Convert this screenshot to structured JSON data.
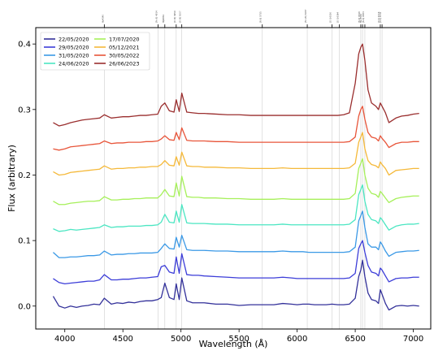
{
  "chart_data": {
    "type": "line",
    "xlabel": "Wavelength (Å)",
    "ylabel": "Flux (arbitrary)",
    "xlim": [
      3750,
      7150
    ],
    "ylim": [
      -0.035,
      0.425
    ],
    "xticks": [
      4000,
      4500,
      5000,
      5500,
      6000,
      6500,
      7000
    ],
    "yticks": [
      0.0,
      0.1,
      0.2,
      0.3,
      0.4
    ],
    "ytick_labels": [
      "0.0",
      "0.1",
      "0.2",
      "0.3",
      "0.4"
    ],
    "grid": false,
    "legend_position": "top-left",
    "legend_columns": 2,
    "x": [
      3900,
      3950,
      4000,
      4050,
      4100,
      4150,
      4200,
      4250,
      4300,
      4340,
      4400,
      4450,
      4500,
      4550,
      4600,
      4650,
      4700,
      4750,
      4800,
      4830,
      4861,
      4900,
      4940,
      4959,
      4985,
      5007,
      5050,
      5100,
      5150,
      5200,
      5300,
      5400,
      5500,
      5600,
      5700,
      5800,
      5876,
      5950,
      6000,
      6050,
      6100,
      6150,
      6200,
      6250,
      6300,
      6350,
      6400,
      6450,
      6500,
      6530,
      6548,
      6563,
      6583,
      6610,
      6640,
      6678,
      6700,
      6716,
      6731,
      6760,
      6790,
      6850,
      6900,
      6950,
      7000,
      7050
    ],
    "series": [
      {
        "name": "22/05/2020",
        "color": "#33319a",
        "values": [
          0.015,
          0.0,
          -0.003,
          0.0,
          -0.002,
          0.0,
          0.001,
          0.003,
          0.002,
          0.012,
          0.003,
          0.005,
          0.004,
          0.006,
          0.005,
          0.007,
          0.008,
          0.008,
          0.01,
          0.013,
          0.035,
          0.013,
          0.01,
          0.034,
          0.01,
          0.043,
          0.008,
          0.005,
          0.005,
          0.005,
          0.003,
          0.003,
          0.001,
          0.002,
          0.002,
          0.002,
          0.004,
          0.003,
          0.002,
          0.003,
          0.003,
          0.002,
          0.002,
          0.002,
          0.003,
          0.002,
          0.002,
          0.003,
          0.012,
          0.045,
          0.055,
          0.07,
          0.045,
          0.02,
          0.01,
          0.008,
          0.004,
          0.025,
          0.018,
          0.004,
          -0.006,
          0.0,
          0.001,
          0.0,
          0.001,
          0.0
        ]
      },
      {
        "name": "29/05/2020",
        "color": "#3c3dd8",
        "values": [
          0.042,
          0.036,
          0.034,
          0.035,
          0.036,
          0.037,
          0.038,
          0.038,
          0.04,
          0.048,
          0.04,
          0.04,
          0.041,
          0.041,
          0.042,
          0.043,
          0.043,
          0.044,
          0.045,
          0.06,
          0.062,
          0.052,
          0.05,
          0.075,
          0.05,
          0.08,
          0.048,
          0.047,
          0.047,
          0.046,
          0.045,
          0.044,
          0.043,
          0.043,
          0.043,
          0.043,
          0.044,
          0.043,
          0.042,
          0.042,
          0.042,
          0.042,
          0.042,
          0.042,
          0.042,
          0.042,
          0.042,
          0.043,
          0.05,
          0.088,
          0.095,
          0.1,
          0.082,
          0.062,
          0.052,
          0.05,
          0.046,
          0.058,
          0.055,
          0.046,
          0.037,
          0.042,
          0.043,
          0.043,
          0.044,
          0.044
        ]
      },
      {
        "name": "31/05/2020",
        "color": "#3b99e6",
        "values": [
          0.082,
          0.074,
          0.074,
          0.075,
          0.075,
          0.076,
          0.077,
          0.077,
          0.078,
          0.084,
          0.078,
          0.079,
          0.079,
          0.08,
          0.08,
          0.081,
          0.081,
          0.081,
          0.082,
          0.088,
          0.095,
          0.088,
          0.087,
          0.105,
          0.09,
          0.108,
          0.086,
          0.085,
          0.085,
          0.085,
          0.084,
          0.084,
          0.083,
          0.083,
          0.083,
          0.083,
          0.084,
          0.083,
          0.083,
          0.083,
          0.082,
          0.082,
          0.082,
          0.082,
          0.082,
          0.082,
          0.082,
          0.083,
          0.09,
          0.13,
          0.138,
          0.145,
          0.12,
          0.095,
          0.09,
          0.09,
          0.086,
          0.098,
          0.094,
          0.084,
          0.076,
          0.082,
          0.083,
          0.084,
          0.084,
          0.085
        ]
      },
      {
        "name": "24/06/2020",
        "color": "#4be6c2",
        "values": [
          0.118,
          0.114,
          0.115,
          0.117,
          0.116,
          0.117,
          0.118,
          0.119,
          0.12,
          0.124,
          0.12,
          0.121,
          0.121,
          0.122,
          0.122,
          0.122,
          0.123,
          0.123,
          0.124,
          0.128,
          0.14,
          0.128,
          0.127,
          0.145,
          0.128,
          0.155,
          0.127,
          0.126,
          0.126,
          0.126,
          0.125,
          0.125,
          0.124,
          0.124,
          0.124,
          0.124,
          0.125,
          0.124,
          0.124,
          0.124,
          0.124,
          0.124,
          0.124,
          0.124,
          0.124,
          0.124,
          0.124,
          0.125,
          0.132,
          0.17,
          0.178,
          0.185,
          0.16,
          0.14,
          0.132,
          0.13,
          0.126,
          0.135,
          0.132,
          0.124,
          0.116,
          0.122,
          0.124,
          0.125,
          0.125,
          0.126
        ]
      },
      {
        "name": "17/07/2020",
        "color": "#a6f05a",
        "values": [
          0.16,
          0.155,
          0.155,
          0.157,
          0.158,
          0.159,
          0.16,
          0.16,
          0.161,
          0.167,
          0.162,
          0.162,
          0.163,
          0.163,
          0.164,
          0.164,
          0.165,
          0.165,
          0.165,
          0.17,
          0.178,
          0.168,
          0.167,
          0.188,
          0.168,
          0.198,
          0.167,
          0.166,
          0.166,
          0.165,
          0.165,
          0.164,
          0.164,
          0.163,
          0.163,
          0.163,
          0.164,
          0.163,
          0.163,
          0.163,
          0.163,
          0.163,
          0.163,
          0.163,
          0.163,
          0.163,
          0.163,
          0.164,
          0.172,
          0.21,
          0.218,
          0.225,
          0.2,
          0.18,
          0.172,
          0.17,
          0.166,
          0.175,
          0.172,
          0.165,
          0.158,
          0.164,
          0.166,
          0.167,
          0.168,
          0.168
        ]
      },
      {
        "name": "05/12/2021",
        "color": "#f5b93a",
        "values": [
          0.205,
          0.2,
          0.201,
          0.204,
          0.205,
          0.206,
          0.207,
          0.208,
          0.209,
          0.214,
          0.209,
          0.21,
          0.21,
          0.211,
          0.211,
          0.212,
          0.212,
          0.213,
          0.213,
          0.216,
          0.222,
          0.215,
          0.214,
          0.228,
          0.215,
          0.235,
          0.214,
          0.213,
          0.213,
          0.212,
          0.212,
          0.211,
          0.211,
          0.21,
          0.21,
          0.21,
          0.211,
          0.21,
          0.21,
          0.21,
          0.21,
          0.21,
          0.21,
          0.21,
          0.21,
          0.21,
          0.21,
          0.211,
          0.218,
          0.25,
          0.258,
          0.265,
          0.24,
          0.222,
          0.216,
          0.214,
          0.211,
          0.22,
          0.216,
          0.21,
          0.2,
          0.207,
          0.208,
          0.209,
          0.21,
          0.21
        ]
      },
      {
        "name": "30/05/2022",
        "color": "#e8553a",
        "values": [
          0.24,
          0.238,
          0.24,
          0.243,
          0.244,
          0.245,
          0.246,
          0.247,
          0.248,
          0.252,
          0.248,
          0.249,
          0.249,
          0.25,
          0.25,
          0.25,
          0.251,
          0.251,
          0.252,
          0.255,
          0.26,
          0.254,
          0.253,
          0.265,
          0.254,
          0.272,
          0.253,
          0.252,
          0.252,
          0.252,
          0.251,
          0.251,
          0.25,
          0.25,
          0.25,
          0.25,
          0.25,
          0.25,
          0.25,
          0.25,
          0.25,
          0.25,
          0.25,
          0.25,
          0.25,
          0.25,
          0.25,
          0.251,
          0.258,
          0.29,
          0.3,
          0.305,
          0.285,
          0.265,
          0.258,
          0.256,
          0.252,
          0.26,
          0.256,
          0.25,
          0.242,
          0.248,
          0.25,
          0.25,
          0.251,
          0.251
        ]
      },
      {
        "name": "26/06/2023",
        "color": "#9a2e2e",
        "values": [
          0.28,
          0.275,
          0.277,
          0.28,
          0.282,
          0.284,
          0.285,
          0.286,
          0.287,
          0.292,
          0.287,
          0.288,
          0.289,
          0.289,
          0.29,
          0.291,
          0.291,
          0.292,
          0.293,
          0.305,
          0.31,
          0.298,
          0.296,
          0.315,
          0.297,
          0.325,
          0.296,
          0.295,
          0.294,
          0.294,
          0.293,
          0.292,
          0.292,
          0.291,
          0.291,
          0.291,
          0.291,
          0.291,
          0.291,
          0.291,
          0.291,
          0.291,
          0.291,
          0.291,
          0.291,
          0.291,
          0.292,
          0.295,
          0.34,
          0.385,
          0.395,
          0.4,
          0.375,
          0.33,
          0.31,
          0.305,
          0.3,
          0.31,
          0.305,
          0.295,
          0.28,
          0.287,
          0.29,
          0.291,
          0.293,
          0.294
        ]
      }
    ],
    "reference_lines": [
      {
        "wavelength": 4340,
        "label": "Hγ4340"
      },
      {
        "wavelength": 4803,
        "label": "[Fe II] 4814"
      },
      {
        "wavelength": 4861,
        "label": "Hβ4861"
      },
      {
        "wavelength": 4959,
        "label": "[O III] 4959"
      },
      {
        "wavelength": 5007,
        "label": "[O III] 5007"
      },
      {
        "wavelength": 5700,
        "label": "[N II] 5755"
      },
      {
        "wavelength": 6087,
        "label": "[Fe VII] 6087"
      },
      {
        "wavelength": 6300,
        "label": "[O I] 6300"
      },
      {
        "wavelength": 6364,
        "label": "[O I] 6364"
      },
      {
        "wavelength": 6548,
        "label": "[N II] 6548"
      },
      {
        "wavelength": 6563,
        "label": "Hα 6563"
      },
      {
        "wavelength": 6583,
        "label": "[N II] 6583"
      },
      {
        "wavelength": 6716,
        "label": "[S II] 6716"
      },
      {
        "wavelength": 6731,
        "label": "[S II] 6731"
      }
    ]
  }
}
